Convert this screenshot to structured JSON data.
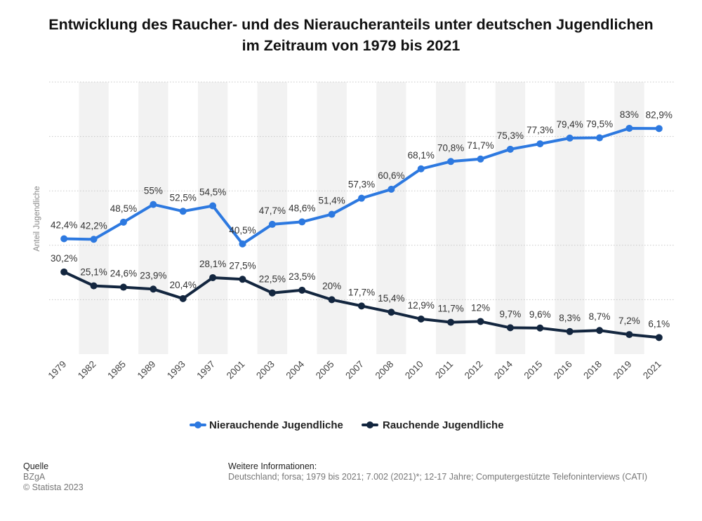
{
  "title_line1": "Entwicklung des Raucher- und des Nieraucheranteils unter deutschen Jugendlichen",
  "title_line2": "im Zeitraum von 1979 bis 2021",
  "colors": {
    "nonsmokers": "#2d79e0",
    "smokers": "#13263f",
    "band": "#f2f2f2",
    "grid": "#c8c8c8"
  },
  "chart_data": {
    "type": "line",
    "categories": [
      "1979",
      "1982",
      "1985",
      "1989",
      "1993",
      "1997",
      "2001",
      "2003",
      "2004",
      "2005",
      "2007",
      "2008",
      "2010",
      "2011",
      "2012",
      "2014",
      "2015",
      "2016",
      "2018",
      "2019",
      "2021"
    ],
    "ylabel": "Anteil Jugendliche",
    "xlabel": "",
    "grid": true,
    "legend_position": "bottom",
    "series": [
      {
        "name": "Nierauchende Jugendliche",
        "color": "#2d79e0",
        "values": [
          42.4,
          42.2,
          48.5,
          55,
          52.5,
          54.5,
          40.5,
          47.7,
          48.6,
          51.4,
          57.3,
          60.6,
          68.1,
          70.8,
          71.7,
          75.3,
          77.3,
          79.4,
          79.5,
          83,
          82.9
        ],
        "labels": [
          "42,4%",
          "42,2%",
          "48,5%",
          "55%",
          "52,5%",
          "54,5%",
          "40,5%",
          "47,7%",
          "48,6%",
          "51,4%",
          "57,3%",
          "60,6%",
          "68,1%",
          "70,8%",
          "71,7%",
          "75,3%",
          "77,3%",
          "79,4%",
          "79,5%",
          "83%",
          "82,9%"
        ]
      },
      {
        "name": "Rauchende Jugendliche",
        "color": "#13263f",
        "values": [
          30.2,
          25.1,
          24.6,
          23.9,
          20.4,
          28.1,
          27.5,
          22.5,
          23.5,
          20,
          17.7,
          15.4,
          12.9,
          11.7,
          12,
          9.7,
          9.6,
          8.3,
          8.7,
          7.2,
          6.1
        ],
        "labels": [
          "30,2%",
          "25,1%",
          "24,6%",
          "23,9%",
          "20,4%",
          "28,1%",
          "27,5%",
          "22,5%",
          "23,5%",
          "20%",
          "17,7%",
          "15,4%",
          "12,9%",
          "11,7%",
          "12%",
          "9,7%",
          "9,6%",
          "8,3%",
          "8,7%",
          "7,2%",
          "6,1%"
        ]
      }
    ]
  },
  "footer": {
    "source_heading": "Quelle",
    "source_name": "BZgA",
    "copyright": "© Statista 2023",
    "info_heading": "Weitere Informationen:",
    "info_text": "Deutschland; forsa; 1979 bis 2021; 7.002 (2021)*; 12-17 Jahre; Computergestützte Telefoninterviews (CATI)"
  }
}
